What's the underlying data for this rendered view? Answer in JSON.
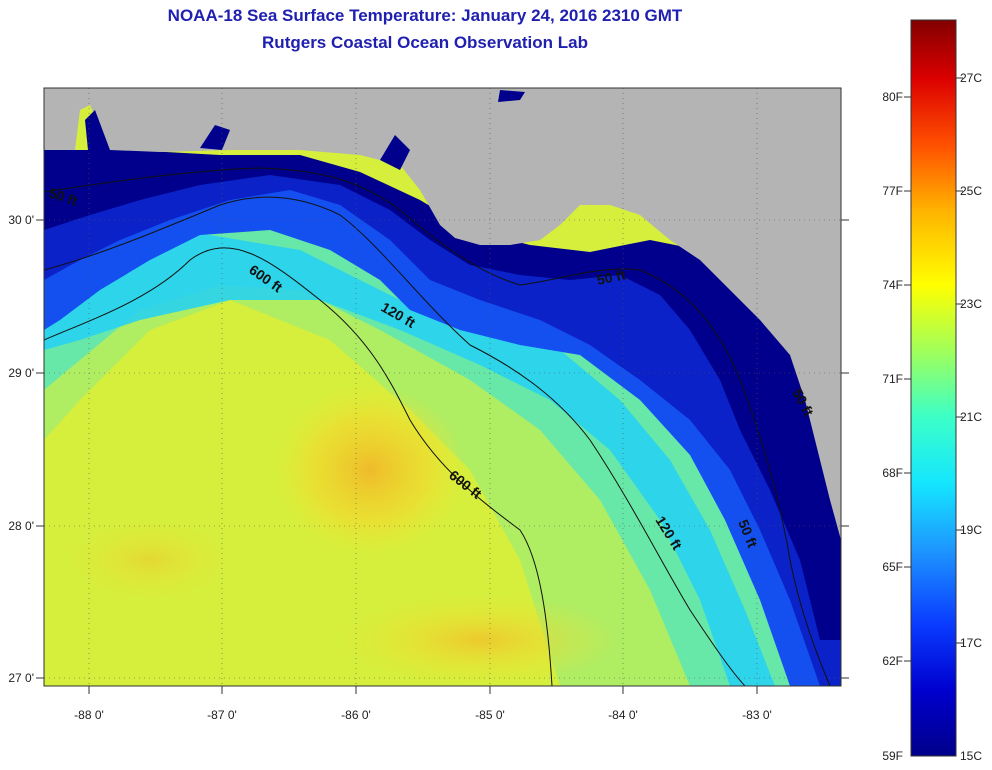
{
  "title": {
    "line1": "NOAA-18 Sea Surface Temperature:  January 24, 2016 2310 GMT",
    "line2": "Rutgers Coastal Ocean Observation Lab"
  },
  "map": {
    "lon_labels": [
      "-88 0'",
      "-87 0'",
      "-86 0'",
      "-85 0'",
      "-84 0'",
      "-83 0'"
    ],
    "lat_labels": [
      "30 0'",
      "29 0'",
      "28 0'",
      "27 0'"
    ],
    "contour_labels": [
      "50 ft",
      "600 ft",
      "120 ft",
      "50 ft",
      "600 ft",
      "120 ft",
      "50 ft",
      "50 ft"
    ],
    "land_color": "#b4b4b4"
  },
  "colorbar": {
    "fahrenheit_labels": [
      "80F",
      "77F",
      "74F",
      "71F",
      "68F",
      "65F",
      "62F",
      "59F"
    ],
    "celsius_labels": [
      "27C",
      "25C",
      "23C",
      "21C",
      "19C",
      "17C",
      "15C"
    ],
    "colors": [
      "#00008a",
      "#0000d0",
      "#0a3cff",
      "#1e96ff",
      "#14e6ff",
      "#3cffc8",
      "#a0ff5a",
      "#ffff00",
      "#ffb400",
      "#ff5000",
      "#dc0000",
      "#820000"
    ]
  }
}
